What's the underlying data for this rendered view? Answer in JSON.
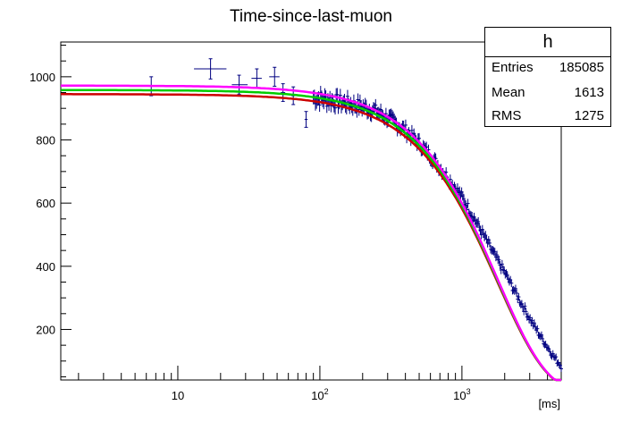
{
  "chart_data": {
    "type": "scatter",
    "title": "Time-since-last-muon",
    "xlabel": "[ms]",
    "ylabel": "",
    "x_scale": "log",
    "xlim": [
      1.5,
      5000
    ],
    "ylim": [
      40,
      1110
    ],
    "yticks": [
      200,
      400,
      600,
      800,
      1000
    ],
    "xtick_labels": [
      "10",
      "10^2",
      "10^3"
    ],
    "xtick_values": [
      10,
      100,
      1000
    ],
    "grid": false,
    "stats_box": {
      "name": "h",
      "rows": [
        {
          "label": "Entries",
          "value": "185085"
        },
        {
          "label": "Mean",
          "value": "1613"
        },
        {
          "label": "RMS",
          "value": "1275"
        }
      ]
    },
    "points_sparse": [
      {
        "x": 6.5,
        "y": 970,
        "xerr": [
          2.5,
          3.5
        ],
        "yerr": 30
      },
      {
        "x": 17,
        "y": 1025,
        "xerr": [
          4,
          5
        ],
        "yerr": 32
      },
      {
        "x": 27,
        "y": 975,
        "xerr": [
          3,
          4
        ],
        "yerr": 30
      },
      {
        "x": 36,
        "y": 995,
        "xerr": [
          3,
          3
        ],
        "yerr": 30
      },
      {
        "x": 48,
        "y": 1000,
        "xerr": [
          4,
          4
        ],
        "yerr": 30
      },
      {
        "x": 55,
        "y": 950,
        "xerr": [
          2,
          2
        ],
        "yerr": 28
      },
      {
        "x": 65,
        "y": 940,
        "xerr": [
          2,
          2
        ],
        "yerr": 28
      },
      {
        "x": 80,
        "y": 865,
        "xerr": [
          2,
          2
        ],
        "yerr": 25
      }
    ],
    "data_curve": {
      "x": [
        90,
        120,
        160,
        200,
        250,
        300,
        400,
        500,
        600,
        800,
        1000,
        1300,
        1600,
        2000,
        2500,
        3000,
        3500,
        4000,
        4500,
        5000
      ],
      "y": [
        935,
        925,
        915,
        905,
        890,
        870,
        830,
        790,
        750,
        680,
        620,
        530,
        455,
        380,
        300,
        235,
        185,
        145,
        110,
        85
      ]
    },
    "fit_curves": [
      {
        "color": "#cc0000",
        "y0": 945,
        "tau": 2000,
        "p": 1.25
      },
      {
        "color": "#00cc00",
        "y0": 958,
        "tau": 2000,
        "p": 1.25
      },
      {
        "color": "#ff00ff",
        "y0": 972,
        "tau": 2000,
        "p": 1.25
      }
    ],
    "colors": {
      "data": "#000080",
      "band": "#0000cc"
    }
  }
}
